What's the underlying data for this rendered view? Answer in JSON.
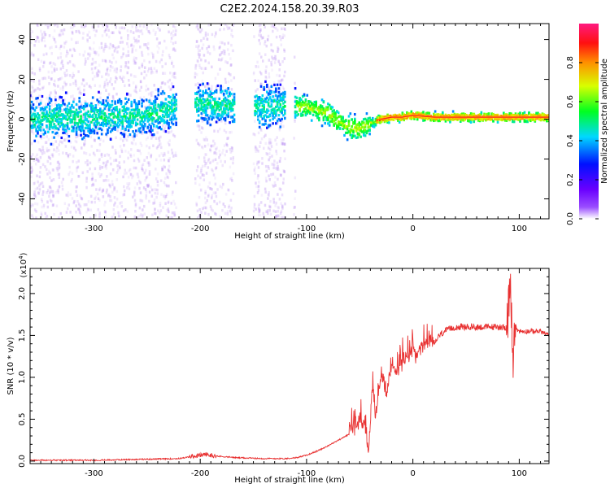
{
  "figure": {
    "title": "C2E2.2024.158.20.39.R03"
  },
  "chart_data": [
    {
      "type": "heatmap",
      "xlabel": "Height of straight line (km)",
      "ylabel": "Frequency (Hz)",
      "xlim": [
        -360,
        128
      ],
      "ylim": [
        -50,
        48
      ],
      "xticks": [
        -300,
        -200,
        -100,
        0,
        100
      ],
      "yticks": [
        -40,
        -20,
        0,
        20,
        40
      ],
      "colorbar": {
        "label": "Normalized spectral amplitude",
        "range": [
          0.0,
          1.0
        ],
        "ticks": [
          0.0,
          0.2,
          0.4,
          0.6,
          0.8
        ],
        "colormap": [
          "#ffffff",
          "#7a00ff",
          "#0000ff",
          "#00c8ff",
          "#00ff00",
          "#ffff00",
          "#ff8000",
          "#ff0000",
          "#ff1a80"
        ]
      },
      "ridge": {
        "note": "frequency of peak spectral amplitude vs height",
        "x": [
          -360,
          -300,
          -250,
          -220,
          -200,
          -150,
          -120,
          -100,
          -80,
          -70,
          -60,
          -50,
          -40,
          -30,
          -20,
          -10,
          0,
          20,
          50,
          90,
          128
        ],
        "y": [
          0,
          1,
          2,
          6,
          8,
          6,
          7,
          6,
          3,
          -1,
          -4,
          -5,
          -2,
          0,
          1,
          1,
          2,
          1,
          1,
          1,
          1
        ]
      }
    },
    {
      "type": "line",
      "xlabel": "Height of straight line (km)",
      "ylabel": "SNR (10 * v/v)",
      "yscale_label": "(x10",
      "yscale_exp": "4",
      "xlim": [
        -360,
        128
      ],
      "ylim": [
        -0.03,
        2.3
      ],
      "xticks": [
        -300,
        -200,
        -100,
        0,
        100
      ],
      "yticks": [
        0.0,
        0.5,
        1.0,
        1.5,
        2.0
      ],
      "grid": false,
      "color": "#e83030",
      "series": [
        {
          "x": [
            -360,
            -300,
            -260,
            -220,
            -205,
            -195,
            -185,
            -175,
            -165,
            -140,
            -120,
            -110,
            -100,
            -90,
            -80,
            -70,
            -60,
            -55,
            -50,
            -45,
            -42,
            -38,
            -35,
            -30,
            -25,
            -20,
            -15,
            -10,
            -5,
            0,
            5,
            10,
            15,
            20,
            25,
            30,
            40,
            50,
            60,
            70,
            80,
            88,
            92,
            94,
            96,
            100,
            110,
            120,
            128
          ],
          "y": [
            0.01,
            0.01,
            0.02,
            0.03,
            0.06,
            0.08,
            0.06,
            0.05,
            0.04,
            0.03,
            0.03,
            0.04,
            0.07,
            0.12,
            0.18,
            0.25,
            0.32,
            0.42,
            0.48,
            0.45,
            0.05,
            0.85,
            0.5,
            1.05,
            0.8,
            1.1,
            1.0,
            1.2,
            1.2,
            1.3,
            1.25,
            1.35,
            1.4,
            1.4,
            1.5,
            1.55,
            1.6,
            1.6,
            1.6,
            1.6,
            1.6,
            1.6,
            2.0,
            1.2,
            1.6,
            1.55,
            1.55,
            1.55,
            1.5
          ]
        }
      ]
    }
  ]
}
